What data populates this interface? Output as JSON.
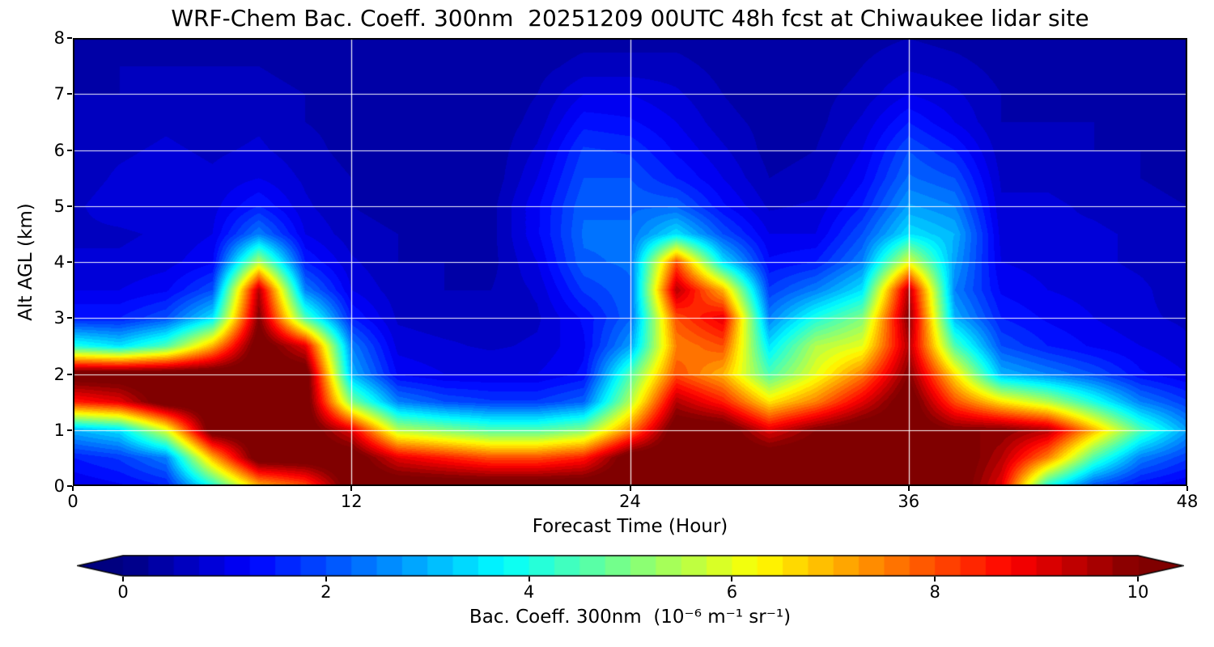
{
  "title": "WRF-Chem Bac. Coeff. 300nm  20251209 00UTC 48h fcst at Chiwaukee lidar site",
  "axes": {
    "xlabel": "Forecast Time (Hour)",
    "ylabel": "Alt AGL (km)",
    "xlim": [
      0,
      48
    ],
    "ylim": [
      0,
      8
    ],
    "x_ticks": [
      0,
      12,
      24,
      36,
      48
    ],
    "y_ticks": [
      0,
      1,
      2,
      3,
      4,
      5,
      6,
      7,
      8
    ],
    "grid": true,
    "grid_color": "#ffffff"
  },
  "colorbar": {
    "label": "Bac. Coeff. 300nm  (10⁻⁶ m⁻¹ sr⁻¹)",
    "ticks": [
      0,
      2,
      4,
      6,
      8,
      10
    ],
    "vmin": 0,
    "vmax": 10,
    "colormap": "jet",
    "extend": "both",
    "level_step": 0.25
  },
  "chart_data": {
    "type": "heatmap",
    "title": "WRF-Chem Bac. Coeff. 300nm  20251209 00UTC 48h fcst at Chiwaukee lidar site",
    "xlabel": "Forecast Time (Hour)",
    "ylabel": "Alt AGL (km)",
    "units": "10^-6 m^-1 sr^-1",
    "colormap": "jet",
    "vmin": 0,
    "vmax": 10,
    "x_hours": [
      0,
      2,
      4,
      6,
      8,
      10,
      12,
      14,
      16,
      18,
      20,
      22,
      24,
      26,
      28,
      30,
      32,
      34,
      36,
      38,
      40,
      42,
      44,
      46,
      48
    ],
    "y_km": [
      0,
      0.5,
      1,
      1.5,
      2,
      2.5,
      3,
      3.5,
      4,
      4.5,
      5,
      5.5,
      6,
      6.5,
      7,
      7.5,
      8
    ],
    "values_by_time": [
      [
        1.0,
        1.5,
        3.0,
        8.5,
        10.6,
        4.0,
        1.5,
        1.0,
        0.8,
        0.7,
        0.7,
        0.6,
        0.6,
        0.5,
        0.5,
        0.4,
        0.4
      ],
      [
        1.2,
        1.8,
        3.5,
        9.0,
        10.6,
        3.5,
        1.5,
        1.0,
        0.8,
        0.7,
        0.9,
        0.8,
        0.7,
        0.6,
        0.5,
        0.5,
        0.4
      ],
      [
        1.5,
        2.5,
        6.0,
        10.6,
        10.6,
        4.5,
        2.0,
        1.2,
        0.9,
        0.8,
        1.0,
        0.9,
        0.8,
        0.7,
        0.6,
        0.5,
        0.4
      ],
      [
        4.0,
        7.0,
        10.6,
        10.6,
        10.6,
        7.0,
        3.5,
        2.0,
        1.2,
        1.0,
        0.9,
        0.8,
        0.7,
        0.6,
        0.5,
        0.5,
        0.4
      ],
      [
        7.0,
        10.6,
        10.6,
        10.6,
        10.6,
        10.6,
        10.0,
        9.5,
        5.5,
        2.5,
        1.5,
        1.0,
        0.8,
        0.7,
        0.6,
        0.5,
        0.4
      ],
      [
        8.0,
        10.6,
        10.6,
        10.6,
        10.6,
        9.0,
        4.5,
        2.5,
        1.5,
        1.0,
        0.8,
        0.7,
        0.6,
        0.5,
        0.5,
        0.4,
        0.4
      ],
      [
        10.6,
        10.6,
        9.0,
        5.0,
        3.0,
        2.5,
        1.5,
        1.0,
        0.8,
        0.6,
        0.5,
        0.5,
        0.4,
        0.4,
        0.4,
        0.3,
        0.3
      ],
      [
        10.6,
        9.0,
        5.5,
        2.5,
        1.2,
        0.9,
        0.7,
        0.6,
        0.5,
        0.5,
        0.4,
        0.4,
        0.4,
        0.3,
        0.3,
        0.3,
        0.3
      ],
      [
        10.6,
        8.5,
        5.0,
        2.0,
        1.0,
        0.8,
        0.6,
        0.5,
        0.5,
        0.4,
        0.4,
        0.4,
        0.3,
        0.3,
        0.3,
        0.3,
        0.3
      ],
      [
        10.6,
        8.0,
        4.5,
        1.8,
        1.0,
        0.7,
        0.6,
        0.5,
        0.4,
        0.4,
        0.4,
        0.3,
        0.3,
        0.3,
        0.3,
        0.3,
        0.3
      ],
      [
        10.6,
        8.0,
        4.5,
        1.8,
        1.0,
        0.8,
        0.7,
        0.8,
        1.0,
        1.2,
        1.2,
        1.0,
        0.8,
        0.6,
        0.5,
        0.4,
        0.3
      ],
      [
        10.6,
        8.5,
        5.0,
        2.2,
        1.3,
        1.2,
        1.3,
        1.8,
        2.2,
        2.3,
        2.2,
        2.0,
        1.8,
        1.4,
        1.0,
        0.6,
        0.4
      ],
      [
        10.6,
        10.6,
        7.5,
        5.5,
        4.5,
        2.8,
        2.2,
        2.2,
        2.3,
        2.3,
        2.2,
        2.0,
        1.7,
        1.3,
        1.0,
        0.6,
        0.4
      ],
      [
        10.6,
        10.6,
        10.6,
        9.5,
        8.0,
        7.5,
        8.0,
        9.5,
        8.0,
        3.5,
        2.2,
        1.5,
        1.2,
        1.0,
        0.8,
        0.6,
        0.4
      ],
      [
        10.6,
        10.6,
        10.6,
        8.5,
        7.0,
        8.0,
        9.0,
        7.0,
        3.5,
        2.0,
        1.3,
        1.0,
        0.8,
        0.6,
        0.5,
        0.4,
        0.3
      ],
      [
        10.6,
        10.6,
        9.0,
        6.5,
        4.5,
        3.5,
        2.5,
        1.8,
        1.3,
        1.0,
        0.7,
        0.5,
        0.4,
        0.4,
        0.3,
        0.3,
        0.3
      ],
      [
        10.6,
        10.6,
        10.0,
        7.5,
        6.0,
        5.5,
        4.0,
        2.5,
        1.5,
        1.0,
        0.8,
        0.6,
        0.5,
        0.4,
        0.4,
        0.3,
        0.3
      ],
      [
        10.6,
        10.6,
        10.6,
        9.0,
        7.5,
        6.0,
        5.0,
        3.5,
        2.5,
        2.0,
        1.5,
        1.2,
        1.0,
        0.8,
        0.6,
        0.5,
        0.4
      ],
      [
        10.6,
        10.6,
        10.6,
        10.6,
        10.0,
        9.5,
        10.0,
        9.5,
        6.0,
        3.5,
        2.8,
        2.3,
        2.0,
        1.5,
        1.0,
        0.7,
        0.5
      ],
      [
        10.6,
        10.6,
        10.0,
        8.0,
        6.5,
        4.5,
        3.0,
        2.5,
        2.8,
        3.0,
        2.5,
        2.0,
        1.5,
        1.0,
        0.8,
        0.6,
        0.4
      ],
      [
        9.0,
        9.5,
        10.0,
        6.5,
        3.0,
        2.0,
        1.5,
        1.2,
        1.0,
        0.9,
        0.8,
        0.7,
        0.6,
        0.5,
        0.5,
        0.4,
        0.3
      ],
      [
        4.0,
        7.5,
        9.5,
        5.5,
        2.5,
        1.5,
        1.2,
        1.0,
        0.9,
        0.8,
        0.8,
        0.7,
        0.6,
        0.5,
        0.4,
        0.4,
        0.3
      ],
      [
        2.0,
        4.5,
        7.0,
        4.0,
        2.0,
        1.2,
        1.0,
        0.9,
        0.8,
        0.8,
        0.7,
        0.6,
        0.5,
        0.5,
        0.4,
        0.3,
        0.3
      ],
      [
        1.3,
        2.5,
        4.5,
        2.5,
        1.3,
        1.0,
        0.8,
        0.8,
        0.7,
        0.7,
        0.6,
        0.5,
        0.5,
        0.4,
        0.4,
        0.3,
        0.3
      ],
      [
        1.0,
        1.8,
        2.8,
        1.8,
        1.0,
        0.8,
        0.7,
        0.6,
        0.6,
        0.5,
        0.5,
        0.4,
        0.4,
        0.4,
        0.3,
        0.3,
        0.3
      ]
    ]
  }
}
